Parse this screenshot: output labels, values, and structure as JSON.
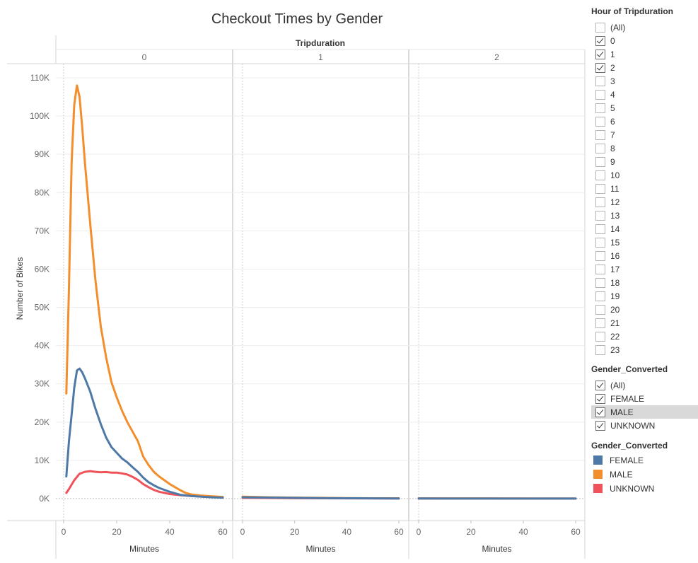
{
  "chart_data": {
    "type": "line",
    "title": "Checkout Times by Gender",
    "column_header": "Tripduration",
    "panels": [
      "0",
      "1",
      "2"
    ],
    "xlabel": "Minutes",
    "ylabel": "Number of Bikes",
    "xlim": [
      0,
      60
    ],
    "ylim": [
      0,
      110000
    ],
    "x_ticks": [
      0,
      20,
      40,
      60
    ],
    "y_ticks": [
      0,
      10000,
      20000,
      30000,
      40000,
      50000,
      60000,
      70000,
      80000,
      90000,
      100000,
      110000
    ],
    "y_tick_labels": [
      "0K",
      "10K",
      "20K",
      "30K",
      "40K",
      "50K",
      "60K",
      "70K",
      "80K",
      "90K",
      "100K",
      "110K"
    ],
    "grid": true,
    "series": [
      {
        "name": "UNKNOWN",
        "color": "#f0525a",
        "panels": [
          [
            [
              1,
              1500
            ],
            [
              2,
              2500
            ],
            [
              4,
              4800
            ],
            [
              6,
              6500
            ],
            [
              8,
              7000
            ],
            [
              10,
              7200
            ],
            [
              12,
              7000
            ],
            [
              14,
              6900
            ],
            [
              16,
              6950
            ],
            [
              18,
              6800
            ],
            [
              20,
              6800
            ],
            [
              22,
              6600
            ],
            [
              24,
              6300
            ],
            [
              26,
              5700
            ],
            [
              28,
              4900
            ],
            [
              30,
              3800
            ],
            [
              32,
              3000
            ],
            [
              34,
              2300
            ],
            [
              36,
              1800
            ],
            [
              38,
              1500
            ],
            [
              40,
              1200
            ],
            [
              44,
              900
            ],
            [
              48,
              700
            ],
            [
              52,
              550
            ],
            [
              56,
              420
            ],
            [
              60,
              350
            ]
          ],
          [
            [
              0,
              200
            ],
            [
              20,
              120
            ],
            [
              40,
              80
            ],
            [
              60,
              50
            ]
          ],
          [
            [
              0,
              40
            ],
            [
              20,
              30
            ],
            [
              40,
              20
            ],
            [
              60,
              15
            ]
          ]
        ]
      },
      {
        "name": "MALE",
        "color": "#f28e2b",
        "panels": [
          [
            [
              1,
              27500
            ],
            [
              2,
              55000
            ],
            [
              3,
              88000
            ],
            [
              4,
              103000
            ],
            [
              5,
              108000
            ],
            [
              6,
              105000
            ],
            [
              7,
              97000
            ],
            [
              8,
              88000
            ],
            [
              10,
              72000
            ],
            [
              12,
              57000
            ],
            [
              14,
              45000
            ],
            [
              16,
              37000
            ],
            [
              18,
              30500
            ],
            [
              20,
              26500
            ],
            [
              22,
              23000
            ],
            [
              24,
              20000
            ],
            [
              26,
              17500
            ],
            [
              28,
              15000
            ],
            [
              30,
              11000
            ],
            [
              32,
              8800
            ],
            [
              34,
              7000
            ],
            [
              36,
              5800
            ],
            [
              38,
              4800
            ],
            [
              40,
              3800
            ],
            [
              42,
              3000
            ],
            [
              44,
              2200
            ],
            [
              46,
              1500
            ],
            [
              48,
              1100
            ],
            [
              52,
              800
            ],
            [
              56,
              600
            ],
            [
              60,
              450
            ]
          ],
          [
            [
              0,
              500
            ],
            [
              10,
              350
            ],
            [
              20,
              250
            ],
            [
              30,
              200
            ],
            [
              40,
              150
            ],
            [
              50,
              100
            ],
            [
              60,
              80
            ]
          ],
          [
            [
              0,
              60
            ],
            [
              30,
              40
            ],
            [
              60,
              25
            ]
          ]
        ]
      },
      {
        "name": "FEMALE",
        "color": "#4e79a7",
        "panels": [
          [
            [
              1,
              5800
            ],
            [
              2,
              15000
            ],
            [
              3,
              22000
            ],
            [
              4,
              29000
            ],
            [
              5,
              33500
            ],
            [
              6,
              34000
            ],
            [
              7,
              33000
            ],
            [
              8,
              31500
            ],
            [
              10,
              28000
            ],
            [
              12,
              23500
            ],
            [
              14,
              19500
            ],
            [
              16,
              16000
            ],
            [
              18,
              13500
            ],
            [
              20,
              12000
            ],
            [
              22,
              10500
            ],
            [
              24,
              9500
            ],
            [
              26,
              8200
            ],
            [
              28,
              7000
            ],
            [
              30,
              5500
            ],
            [
              32,
              4300
            ],
            [
              34,
              3500
            ],
            [
              36,
              2800
            ],
            [
              38,
              2300
            ],
            [
              40,
              1800
            ],
            [
              42,
              1400
            ],
            [
              44,
              1000
            ],
            [
              48,
              700
            ],
            [
              52,
              500
            ],
            [
              56,
              350
            ],
            [
              60,
              250
            ]
          ],
          [
            [
              0,
              350
            ],
            [
              10,
              280
            ],
            [
              20,
              200
            ],
            [
              30,
              150
            ],
            [
              40,
              100
            ],
            [
              50,
              70
            ],
            [
              60,
              50
            ]
          ],
          [
            [
              0,
              30
            ],
            [
              30,
              20
            ],
            [
              60,
              10
            ]
          ]
        ]
      }
    ]
  },
  "filters": {
    "hour_title": "Hour of Tripduration",
    "hour_items": [
      {
        "label": "(All)",
        "checked": false
      },
      {
        "label": "0",
        "checked": true
      },
      {
        "label": "1",
        "checked": true
      },
      {
        "label": "2",
        "checked": true
      },
      {
        "label": "3",
        "checked": false
      },
      {
        "label": "4",
        "checked": false
      },
      {
        "label": "5",
        "checked": false
      },
      {
        "label": "6",
        "checked": false
      },
      {
        "label": "7",
        "checked": false
      },
      {
        "label": "8",
        "checked": false
      },
      {
        "label": "9",
        "checked": false
      },
      {
        "label": "10",
        "checked": false
      },
      {
        "label": "11",
        "checked": false
      },
      {
        "label": "12",
        "checked": false
      },
      {
        "label": "13",
        "checked": false
      },
      {
        "label": "14",
        "checked": false
      },
      {
        "label": "15",
        "checked": false
      },
      {
        "label": "16",
        "checked": false
      },
      {
        "label": "17",
        "checked": false
      },
      {
        "label": "18",
        "checked": false
      },
      {
        "label": "19",
        "checked": false
      },
      {
        "label": "20",
        "checked": false
      },
      {
        "label": "21",
        "checked": false
      },
      {
        "label": "22",
        "checked": false
      },
      {
        "label": "23",
        "checked": false
      }
    ],
    "gender_title": "Gender_Converted",
    "gender_items": [
      {
        "label": "(All)",
        "checked": true,
        "highlighted": false
      },
      {
        "label": "FEMALE",
        "checked": true,
        "highlighted": false
      },
      {
        "label": "MALE",
        "checked": true,
        "highlighted": true
      },
      {
        "label": "UNKNOWN",
        "checked": true,
        "highlighted": false
      }
    ]
  },
  "legend": {
    "title": "Gender_Converted",
    "items": [
      {
        "label": "FEMALE",
        "color": "#4e79a7"
      },
      {
        "label": "MALE",
        "color": "#f28e2b"
      },
      {
        "label": "UNKNOWN",
        "color": "#f0525a"
      }
    ]
  }
}
